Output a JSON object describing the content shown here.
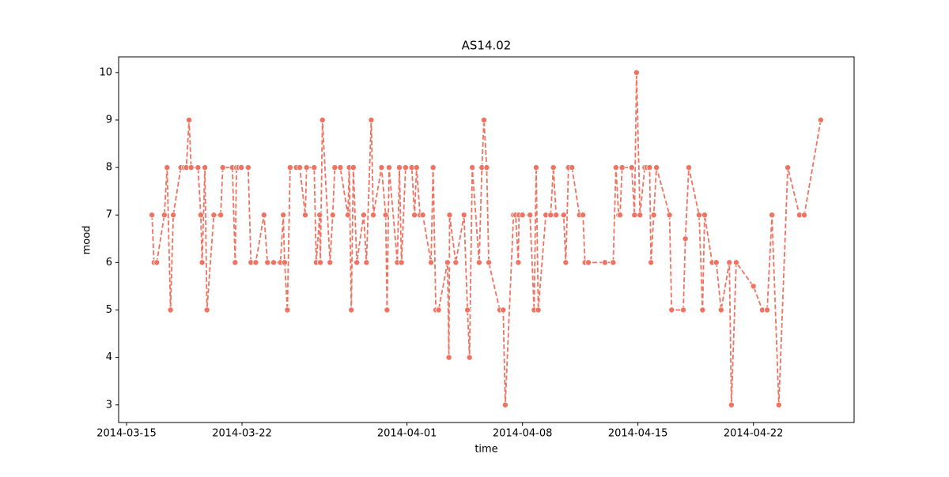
{
  "chart_data": {
    "type": "line",
    "title": "AS14.02",
    "x_label": "time",
    "y_label": "mood",
    "color": "#f07261",
    "line_style": "dashed",
    "markers": true,
    "xlim": [
      "2014-03-14T12:30",
      "2014-04-28T02:30"
    ],
    "xticks": [
      "2014-03-15",
      "2014-03-22",
      "2014-04-01",
      "2014-04-08",
      "2014-04-15",
      "2014-04-22"
    ],
    "ylim": [
      2.63,
      10.33
    ],
    "yticks": [
      3,
      4,
      5,
      6,
      7,
      8,
      9,
      10
    ],
    "x": [
      "2014-03-16T13:00",
      "2014-03-16T16:00",
      "2014-03-16T20:00",
      "2014-03-17T07:00",
      "2014-03-17T11:00",
      "2014-03-17T16:00",
      "2014-03-17T20:00",
      "2014-03-18T07:00",
      "2014-03-18T12:00",
      "2014-03-18T15:00",
      "2014-03-18T19:00",
      "2014-03-18T22:00",
      "2014-03-19T08:00",
      "2014-03-19T12:00",
      "2014-03-19T14:00",
      "2014-03-19T18:00",
      "2014-03-19T21:00",
      "2014-03-20T07:00",
      "2014-03-20T17:00",
      "2014-03-20T20:00",
      "2014-03-21T10:00",
      "2014-03-21T14:00",
      "2014-03-21T16:00",
      "2014-03-21T19:00",
      "2014-03-21T23:00",
      "2014-03-22T09:00",
      "2014-03-22T13:00",
      "2014-03-22T20:00",
      "2014-03-23T08:00",
      "2014-03-23T13:00",
      "2014-03-23T22:00",
      "2014-03-24T08:00",
      "2014-03-24T12:00",
      "2014-03-24T14:00",
      "2014-03-24T18:00",
      "2014-03-24T22:00",
      "2014-03-25T07:00",
      "2014-03-25T12:00",
      "2014-03-25T20:00",
      "2014-03-25T22:00",
      "2014-03-26T09:00",
      "2014-03-26T12:00",
      "2014-03-26T17:00",
      "2014-03-26T18:00",
      "2014-03-26T21:00",
      "2014-03-27T08:00",
      "2014-03-27T12:00",
      "2014-03-27T15:00",
      "2014-03-27T23:00",
      "2014-03-28T10:00",
      "2014-03-28T12:00",
      "2014-03-28T15:00",
      "2014-03-28T18:00",
      "2014-03-28T23:00",
      "2014-03-29T09:00",
      "2014-03-29T13:00",
      "2014-03-29T20:00",
      "2014-03-29T23:00",
      "2014-03-30T11:00",
      "2014-03-30T17:00",
      "2014-03-30T19:00",
      "2014-03-30T22:00",
      "2014-03-31T10:00",
      "2014-03-31T13:00",
      "2014-03-31T16:00",
      "2014-03-31T22:00",
      "2014-04-01T07:00",
      "2014-04-01T11:00",
      "2014-04-01T14:00",
      "2014-04-01T19:00",
      "2014-04-01T23:00",
      "2014-04-02T11:00",
      "2014-04-02T14:00",
      "2014-04-02T18:00",
      "2014-04-02T22:00",
      "2014-04-03T11:00",
      "2014-04-03T13:00",
      "2014-04-03T14:00",
      "2014-04-03T23:00",
      "2014-04-04T11:00",
      "2014-04-04T16:00",
      "2014-04-04T19:00",
      "2014-04-04T23:00",
      "2014-04-05T09:00",
      "2014-04-05T13:00",
      "2014-04-05T16:00",
      "2014-04-05T20:00",
      "2014-04-05T23:00",
      "2014-04-06T15:00",
      "2014-04-06T20:00",
      "2014-04-06T23:00",
      "2014-04-07T11:00",
      "2014-04-07T14:00",
      "2014-04-07T18:00",
      "2014-04-07T19:00",
      "2014-04-08T00:00",
      "2014-04-08T11:00",
      "2014-04-08T17:00",
      "2014-04-08T20:00",
      "2014-04-08T23:00",
      "2014-04-09T10:00",
      "2014-04-09T17:00",
      "2014-04-09T21:00",
      "2014-04-10T01:00",
      "2014-04-10T12:00",
      "2014-04-10T15:00",
      "2014-04-10T19:00",
      "2014-04-11T00:00",
      "2014-04-11T11:00",
      "2014-04-11T16:00",
      "2014-04-11T19:00",
      "2014-04-12T00:00",
      "2014-04-13T00:00",
      "2014-04-13T12:00",
      "2014-04-13T16:00",
      "2014-04-13T20:00",
      "2014-04-13T22:00",
      "2014-04-14T01:00",
      "2014-04-14T15:00",
      "2014-04-14T19:00",
      "2014-04-14T22:00",
      "2014-04-15T03:00",
      "2014-04-15T10:00",
      "2014-04-15T13:00",
      "2014-04-15T17:00",
      "2014-04-15T19:00",
      "2014-04-15T23:00",
      "2014-04-16T03:00",
      "2014-04-16T22:00",
      "2014-04-17T01:00",
      "2014-04-17T18:00",
      "2014-04-17T21:00",
      "2014-04-18T02:00",
      "2014-04-18T17:00",
      "2014-04-18T22:00",
      "2014-04-19T01:00",
      "2014-04-19T12:00",
      "2014-04-19T18:00",
      "2014-04-20T01:00",
      "2014-04-20T13:00",
      "2014-04-20T16:00",
      "2014-04-20T23:00",
      "2014-04-22T00:00",
      "2014-04-22T13:00",
      "2014-04-22T20:00",
      "2014-04-23T03:00",
      "2014-04-23T13:00",
      "2014-04-24T02:00",
      "2014-04-24T19:00",
      "2014-04-25T02:00",
      "2014-04-26T02:00"
    ],
    "values": [
      7,
      6,
      6,
      7,
      8,
      5,
      7,
      8,
      8,
      8,
      9,
      8,
      8,
      7,
      6,
      8,
      5,
      7,
      7,
      8,
      8,
      6,
      8,
      8,
      8,
      8,
      6,
      6,
      7,
      6,
      6,
      6,
      7,
      6,
      5,
      8,
      8,
      8,
      7,
      8,
      8,
      6,
      7,
      6,
      9,
      6,
      7,
      8,
      8,
      7,
      8,
      5,
      8,
      6,
      7,
      6,
      9,
      7,
      8,
      7,
      5,
      8,
      6,
      8,
      6,
      8,
      8,
      7,
      8,
      7,
      7,
      6,
      8,
      5,
      5,
      6,
      4,
      7,
      6,
      7,
      5,
      4,
      8,
      6,
      8,
      9,
      8,
      6,
      5,
      5,
      3,
      7,
      7,
      6,
      7,
      7,
      7,
      5,
      8,
      5,
      7,
      7,
      8,
      7,
      7,
      6,
      8,
      8,
      7,
      7,
      6,
      6,
      6,
      6,
      8,
      7,
      7,
      8,
      8,
      7,
      10,
      7,
      8,
      8,
      8,
      6,
      7,
      8,
      7,
      5,
      5,
      6.5,
      8,
      7,
      5,
      7,
      6,
      6,
      5,
      6,
      3,
      6,
      5.5,
      5,
      5,
      7,
      3,
      8,
      7,
      7,
      9
    ]
  }
}
